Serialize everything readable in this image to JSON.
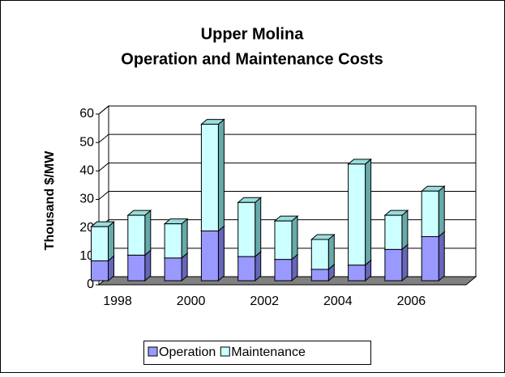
{
  "chart_data": {
    "type": "bar3d_stacked",
    "title": [
      "Upper Molina",
      "Operation and Maintenance Costs"
    ],
    "y_label": "Thousand $/MW",
    "categories": [
      "1998",
      null,
      "2000",
      null,
      "2002",
      null,
      "2004",
      null,
      "2006",
      null
    ],
    "series": [
      {
        "name": "Operation",
        "color": "#9999ff",
        "values": [
          7,
          9,
          8,
          17.5,
          8.5,
          7.5,
          4,
          5.5,
          11,
          15.5
        ]
      },
      {
        "name": "Maintenance",
        "color": "#ccffff",
        "values": [
          12,
          14,
          12,
          37.5,
          19,
          13.5,
          10.5,
          35.5,
          12,
          16
        ]
      }
    ],
    "ylim": [
      0,
      60
    ],
    "yticks": [
      0,
      10,
      20,
      30,
      40,
      50,
      60
    ],
    "grid": true,
    "legend": "bottom"
  }
}
